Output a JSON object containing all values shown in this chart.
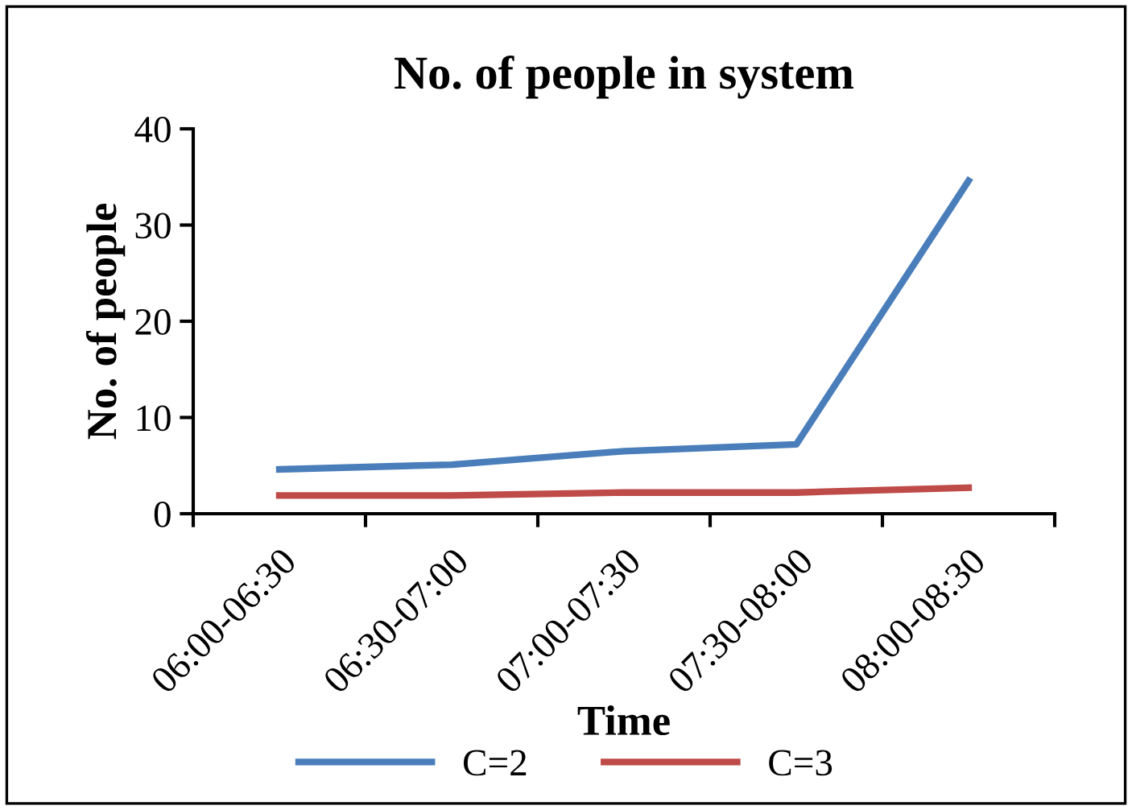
{
  "chart_data": {
    "type": "line",
    "title": "No. of people in system",
    "xlabel": "Time",
    "ylabel": "No. of people",
    "categories": [
      "06:00-06:30",
      "06:30-07:00",
      "07:00-07:30",
      "07:30-08:00",
      "08:00-08:30"
    ],
    "series": [
      {
        "name": "C=2",
        "color": "#4a7ebb",
        "values": [
          4.6,
          5.1,
          6.5,
          7.2,
          34.6
        ]
      },
      {
        "name": "C=3",
        "color": "#be4b48",
        "values": [
          1.9,
          1.9,
          2.2,
          2.2,
          2.7
        ]
      }
    ],
    "ylim": [
      0,
      40
    ],
    "yticks": [
      0,
      10,
      20,
      30,
      40
    ],
    "grid": false,
    "legend": "bottom",
    "marker": "none",
    "line_style": "solid"
  }
}
